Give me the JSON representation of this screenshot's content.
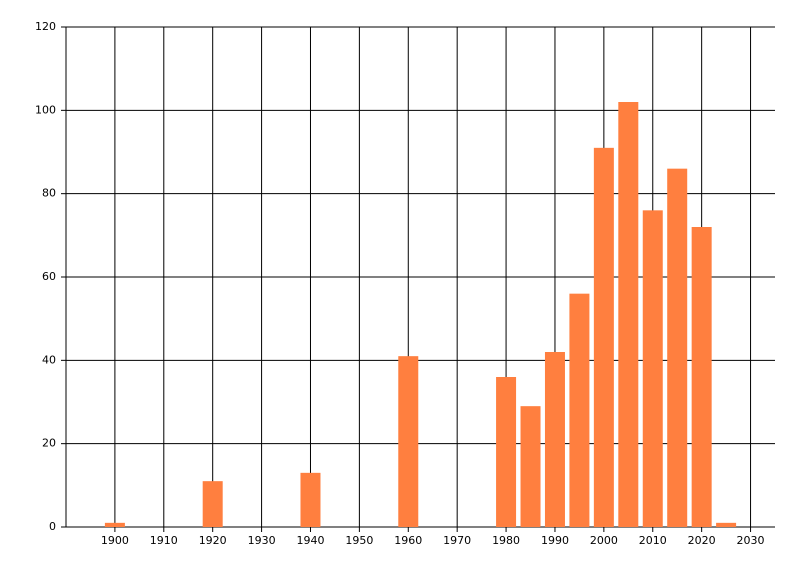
{
  "chart_data": {
    "type": "bar",
    "x": [
      1900,
      1920,
      1940,
      1960,
      1980,
      1985,
      1990,
      1995,
      2000,
      2005,
      2010,
      2015,
      2020,
      2025
    ],
    "values": [
      1,
      11,
      13,
      41,
      36,
      29,
      42,
      56,
      91,
      102,
      76,
      86,
      72,
      1
    ],
    "color": "#ff7f3f",
    "xlim": [
      1890,
      2035
    ],
    "xticks": [
      1900,
      1910,
      1920,
      1930,
      1940,
      1950,
      1960,
      1970,
      1980,
      1990,
      2000,
      2010,
      2020,
      2030
    ],
    "ylim": [
      0,
      120
    ],
    "yticks": [
      0,
      20,
      40,
      60,
      80,
      100,
      120
    ],
    "grid": true
  }
}
